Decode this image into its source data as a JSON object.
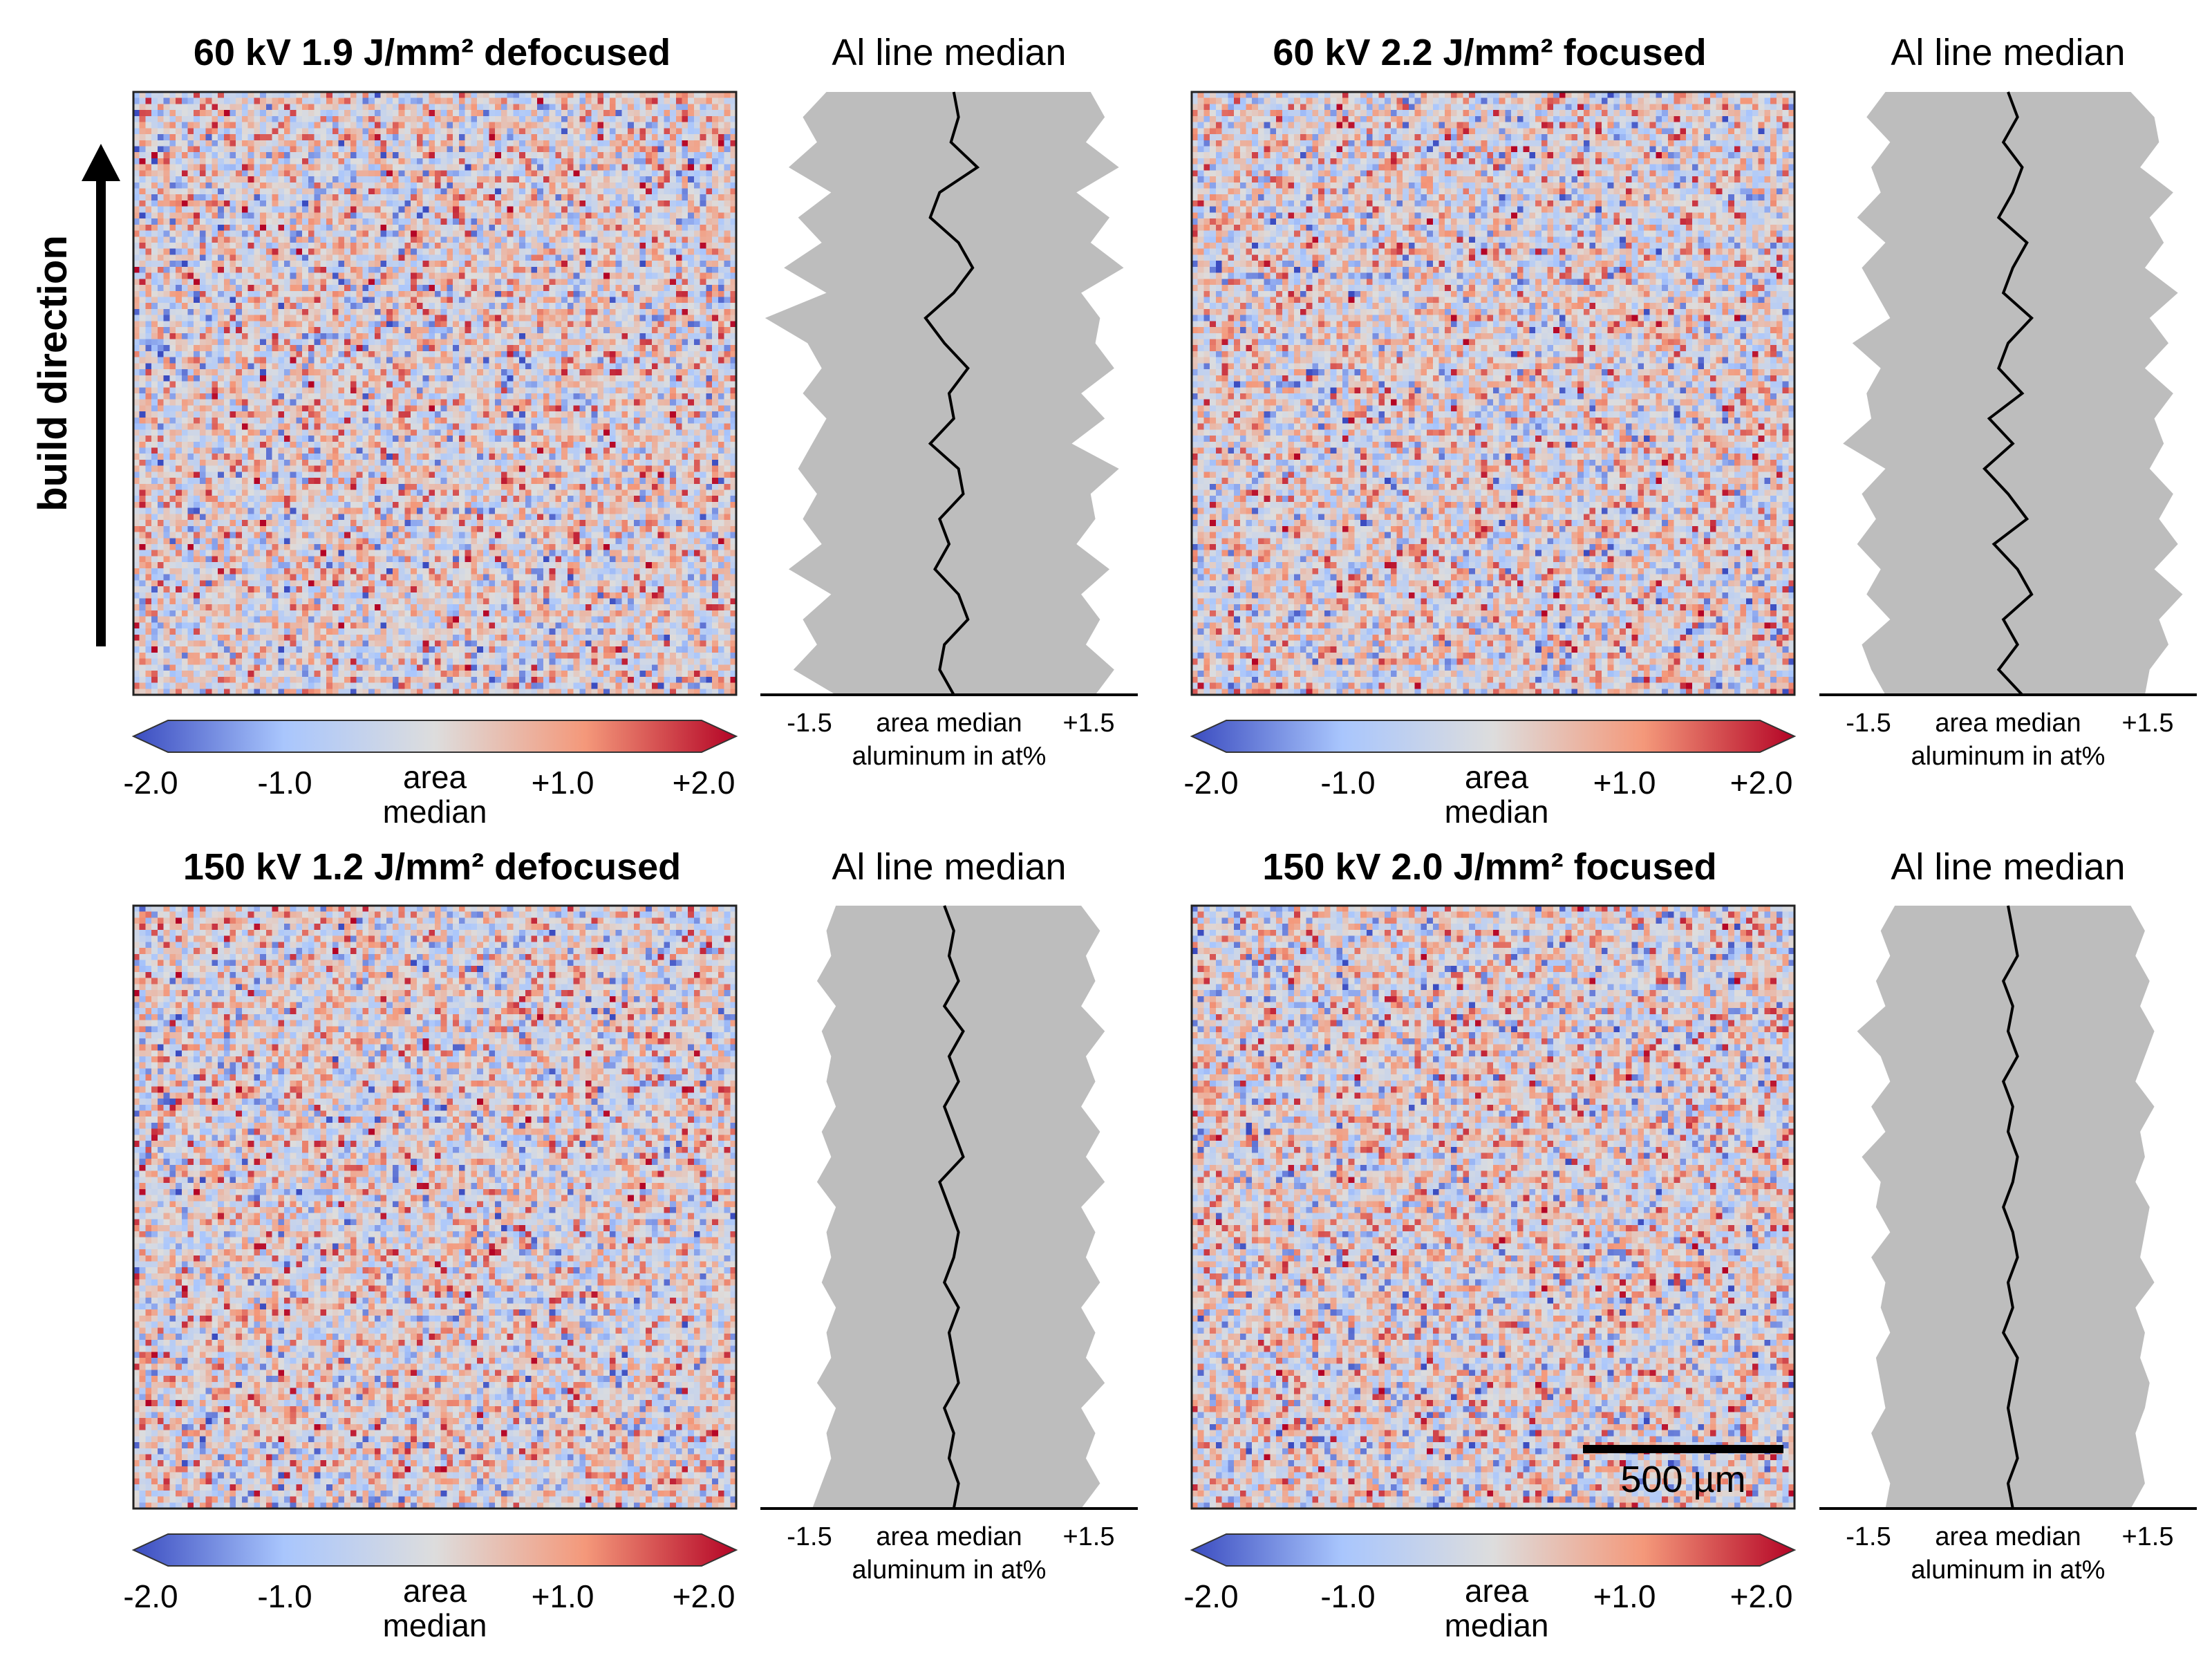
{
  "figure": {
    "build_direction_label": "build direction",
    "scale_bar_label": "500 µm",
    "scale_bar_um": 500
  },
  "chart_data": [
    {
      "type": "heatmap",
      "title": "60 kV 1.9 J/mm² defocused",
      "grid": [
        100,
        100
      ],
      "seed": 11,
      "colorbar": {
        "ticks": [
          "-2.0",
          "-1.0",
          "area",
          "+1.0",
          "+2.0"
        ],
        "center_label_line2": "median",
        "range": [
          -2.0,
          2.0
        ],
        "colormap": "coolwarm",
        "colors": [
          "#3b4cc0",
          "#a9c6fd",
          "#dddddd",
          "#f4987a",
          "#b40426"
        ]
      },
      "profile": {
        "title": "Al line median",
        "xlabel_ticks": [
          "-1.5",
          "area median",
          "+1.5"
        ],
        "xlabel": "aluminum in at%",
        "xlim": [
          -2.0,
          2.0
        ],
        "median_line": [
          0.05,
          0.1,
          0.02,
          0.3,
          -0.1,
          -0.2,
          0.1,
          0.25,
          0.05,
          -0.25,
          -0.05,
          0.2,
          0.0,
          0.05,
          -0.2,
          0.1,
          0.15,
          -0.1,
          0.0,
          -0.15,
          0.1,
          0.2,
          -0.05,
          -0.1,
          0.05
        ],
        "band_low": [
          -1.3,
          -1.55,
          -1.4,
          -1.7,
          -1.25,
          -1.6,
          -1.35,
          -1.75,
          -1.3,
          -1.95,
          -1.5,
          -1.35,
          -1.55,
          -1.3,
          -1.45,
          -1.6,
          -1.4,
          -1.55,
          -1.35,
          -1.7,
          -1.25,
          -1.55,
          -1.4,
          -1.65,
          -1.2
        ],
        "band_high": [
          1.5,
          1.65,
          1.45,
          1.8,
          1.35,
          1.7,
          1.5,
          1.85,
          1.4,
          1.6,
          1.55,
          1.75,
          1.4,
          1.65,
          1.3,
          1.8,
          1.5,
          1.55,
          1.35,
          1.7,
          1.4,
          1.6,
          1.45,
          1.75,
          1.55
        ]
      }
    },
    {
      "type": "heatmap",
      "title": "60 kV 2.2 J/mm² focused",
      "grid": [
        100,
        100
      ],
      "seed": 23,
      "colorbar": {
        "ticks": [
          "-2.0",
          "-1.0",
          "area",
          "+1.0",
          "+2.0"
        ],
        "center_label_line2": "median",
        "range": [
          -2.0,
          2.0
        ],
        "colormap": "coolwarm",
        "colors": [
          "#3b4cc0",
          "#a9c6fd",
          "#dddddd",
          "#f4987a",
          "#b40426"
        ]
      },
      "profile": {
        "title": "Al line median",
        "xlabel_ticks": [
          "-1.5",
          "area median",
          "+1.5"
        ],
        "xlabel": "aluminum in at%",
        "xlim": [
          -2.0,
          2.0
        ],
        "median_line": [
          0.0,
          0.1,
          -0.05,
          0.15,
          0.05,
          -0.1,
          0.2,
          0.05,
          -0.05,
          0.25,
          0.0,
          -0.1,
          0.15,
          -0.2,
          0.05,
          -0.25,
          0.0,
          0.2,
          -0.15,
          0.1,
          0.25,
          -0.05,
          0.1,
          -0.1,
          0.15
        ],
        "band_low": [
          -1.3,
          -1.5,
          -1.25,
          -1.45,
          -1.35,
          -1.6,
          -1.3,
          -1.55,
          -1.4,
          -1.25,
          -1.65,
          -1.35,
          -1.5,
          -1.45,
          -1.75,
          -1.3,
          -1.55,
          -1.4,
          -1.6,
          -1.35,
          -1.5,
          -1.25,
          -1.55,
          -1.45,
          -1.3
        ],
        "band_high": [
          1.3,
          1.55,
          1.6,
          1.4,
          1.75,
          1.5,
          1.65,
          1.45,
          1.8,
          1.5,
          1.7,
          1.45,
          1.75,
          1.55,
          1.65,
          1.5,
          1.75,
          1.6,
          1.8,
          1.55,
          1.85,
          1.6,
          1.7,
          1.5,
          1.45
        ]
      }
    },
    {
      "type": "heatmap",
      "title": "150 kV 1.2 J/mm² defocused",
      "grid": [
        100,
        100
      ],
      "seed": 37,
      "colorbar": {
        "ticks": [
          "-2.0",
          "-1.0",
          "area",
          "+1.0",
          "+2.0"
        ],
        "center_label_line2": "median",
        "range": [
          -2.0,
          2.0
        ],
        "colormap": "coolwarm",
        "colors": [
          "#3b4cc0",
          "#a9c6fd",
          "#dddddd",
          "#f4987a",
          "#b40426"
        ]
      },
      "profile": {
        "title": "Al line median",
        "xlabel_ticks": [
          "-1.5",
          "area median",
          "+1.5"
        ],
        "xlabel": "aluminum in at%",
        "xlim": [
          -2.0,
          2.0
        ],
        "median_line": [
          -0.05,
          0.05,
          0.0,
          0.1,
          -0.05,
          0.15,
          0.0,
          0.1,
          -0.05,
          0.05,
          0.15,
          -0.1,
          0.0,
          0.1,
          0.05,
          -0.05,
          0.1,
          0.0,
          0.05,
          0.1,
          -0.05,
          0.05,
          0.0,
          0.1,
          0.05
        ],
        "band_low": [
          -1.2,
          -1.3,
          -1.25,
          -1.4,
          -1.2,
          -1.35,
          -1.25,
          -1.3,
          -1.2,
          -1.35,
          -1.25,
          -1.4,
          -1.2,
          -1.3,
          -1.25,
          -1.35,
          -1.2,
          -1.3,
          -1.25,
          -1.4,
          -1.2,
          -1.3,
          -1.25,
          -1.35,
          -1.45
        ],
        "band_high": [
          1.4,
          1.6,
          1.45,
          1.55,
          1.4,
          1.65,
          1.45,
          1.55,
          1.4,
          1.6,
          1.45,
          1.65,
          1.4,
          1.55,
          1.45,
          1.6,
          1.4,
          1.55,
          1.45,
          1.65,
          1.4,
          1.55,
          1.45,
          1.6,
          1.4
        ]
      }
    },
    {
      "type": "heatmap",
      "title": "150 kV 2.0 J/mm² focused",
      "grid": [
        100,
        100
      ],
      "seed": 53,
      "colorbar": {
        "ticks": [
          "-2.0",
          "-1.0",
          "area",
          "+1.0",
          "+2.0"
        ],
        "center_label_line2": "median",
        "range": [
          -2.0,
          2.0
        ],
        "colormap": "coolwarm",
        "colors": [
          "#3b4cc0",
          "#a9c6fd",
          "#dddddd",
          "#f4987a",
          "#b40426"
        ]
      },
      "profile": {
        "title": "Al line median",
        "xlabel_ticks": [
          "-1.5",
          "area median",
          "+1.5"
        ],
        "xlabel": "aluminum in at%",
        "xlim": [
          -2.0,
          2.0
        ],
        "median_line": [
          0.0,
          0.05,
          0.1,
          -0.05,
          0.05,
          0.0,
          0.1,
          -0.05,
          0.05,
          0.0,
          0.1,
          0.05,
          -0.05,
          0.05,
          0.1,
          0.0,
          0.05,
          -0.05,
          0.1,
          0.05,
          0.0,
          0.05,
          0.1,
          0.0,
          0.05
        ],
        "band_low": [
          -1.2,
          -1.35,
          -1.25,
          -1.4,
          -1.3,
          -1.6,
          -1.35,
          -1.25,
          -1.45,
          -1.3,
          -1.55,
          -1.35,
          -1.4,
          -1.25,
          -1.45,
          -1.3,
          -1.35,
          -1.25,
          -1.4,
          -1.35,
          -1.3,
          -1.45,
          -1.35,
          -1.25,
          -1.3
        ],
        "band_high": [
          1.3,
          1.45,
          1.35,
          1.5,
          1.4,
          1.55,
          1.45,
          1.35,
          1.55,
          1.4,
          1.45,
          1.35,
          1.5,
          1.45,
          1.4,
          1.55,
          1.35,
          1.45,
          1.4,
          1.5,
          1.45,
          1.35,
          1.4,
          1.45,
          1.3
        ]
      }
    }
  ]
}
